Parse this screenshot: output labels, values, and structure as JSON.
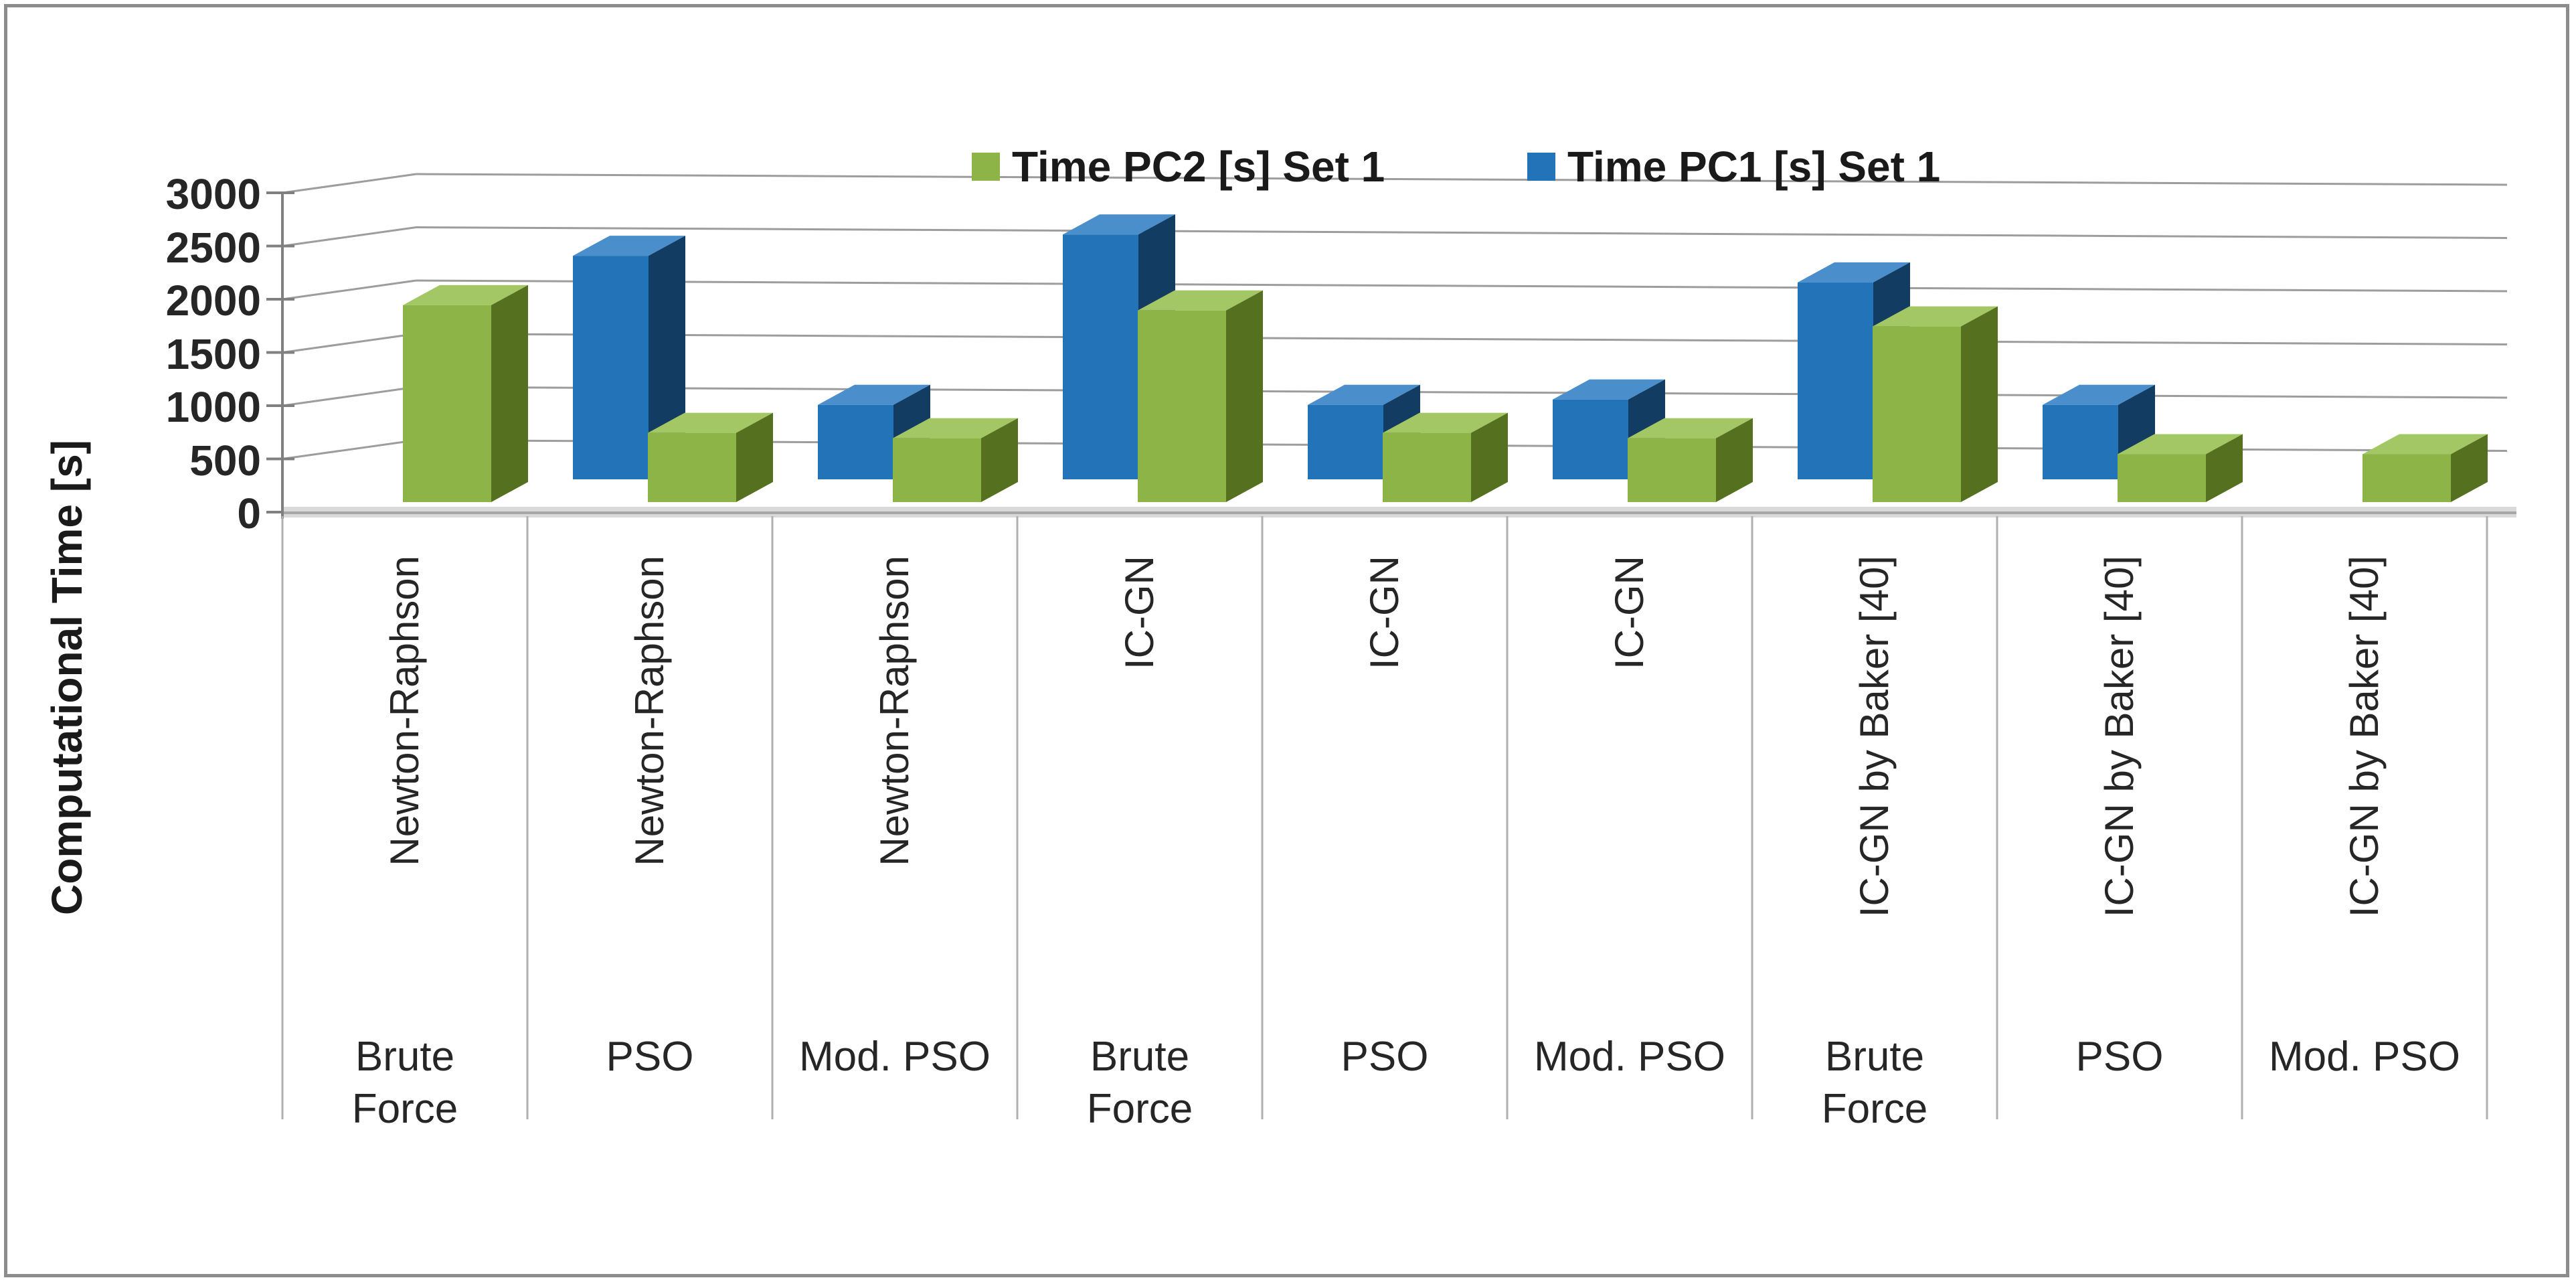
{
  "chart_data": {
    "type": "bar",
    "projection": "3d-column",
    "title": "",
    "ylabel": "Computational Time [s]",
    "xlabel": "",
    "ylim": [
      0,
      3000
    ],
    "ytick_step": 500,
    "yticks": [
      0,
      500,
      1000,
      1500,
      2000,
      2500,
      3000
    ],
    "grid": true,
    "legend_position": "top-center",
    "categories": [
      {
        "method": "Newton-Raphson",
        "initializer": "Brute Force"
      },
      {
        "method": "Newton-Raphson",
        "initializer": "PSO"
      },
      {
        "method": "Newton-Raphson",
        "initializer": "Mod. PSO"
      },
      {
        "method": "IC-GN",
        "initializer": "Brute Force"
      },
      {
        "method": "IC-GN",
        "initializer": "PSO"
      },
      {
        "method": "IC-GN",
        "initializer": "Mod. PSO"
      },
      {
        "method": "IC-GN by Baker [40]",
        "initializer": "Brute Force"
      },
      {
        "method": "IC-GN by Baker [40]",
        "initializer": "PSO"
      },
      {
        "method": "IC-GN by Baker [40]",
        "initializer": "Mod. PSO"
      }
    ],
    "series": [
      {
        "name": "Time PC2 [s] Set 1",
        "color": "#8CB446",
        "color_top": "#A4C765",
        "color_side": "#55701F",
        "values": [
          1850,
          650,
          600,
          1800,
          650,
          600,
          1650,
          450,
          450
        ]
      },
      {
        "name": "Time PC1 [s] Set 1",
        "color": "#2373B9",
        "color_top": "#4A8FCB",
        "color_side": "#133C63",
        "values": [
          null,
          2100,
          700,
          2300,
          700,
          750,
          1850,
          700,
          null
        ]
      }
    ],
    "colors": {
      "gridline": "#9d9d9d",
      "axis": "#808080",
      "separator": "#b0b0b0",
      "floor": "#d9d9d9",
      "text": "#262626"
    }
  }
}
